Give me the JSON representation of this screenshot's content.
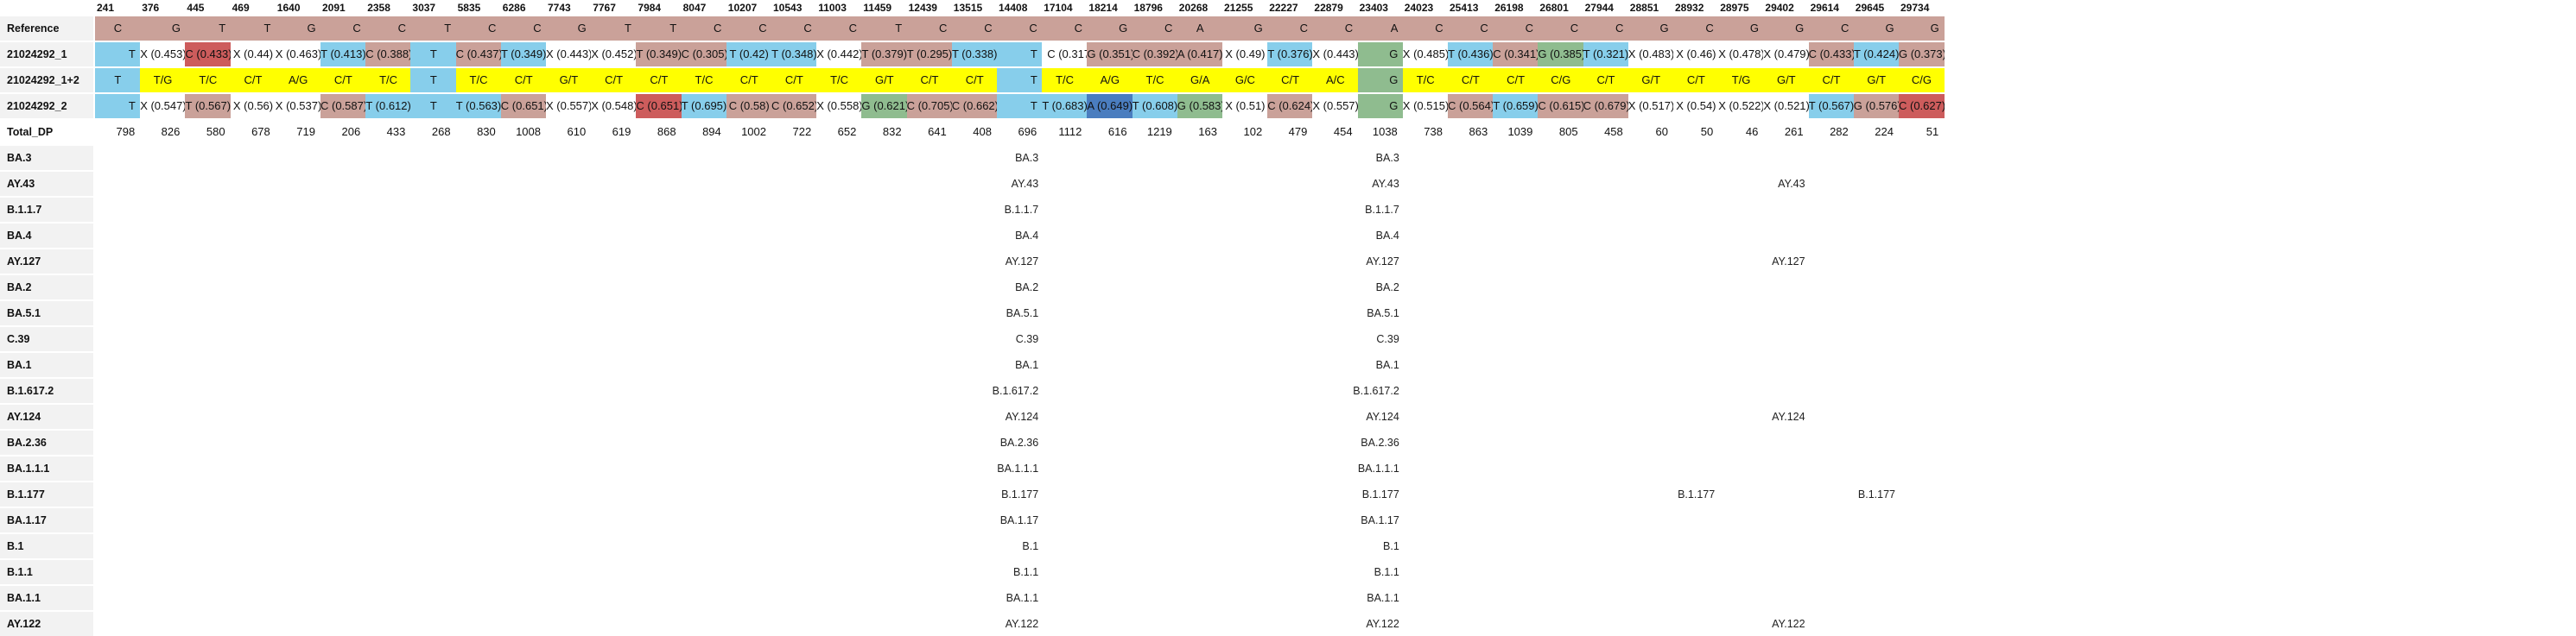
{
  "colors": {
    "C": "#caa199",
    "T": "#87ceeb",
    "G": "#8fbc8f",
    "A": "#caa199",
    "Y": "#ffff00",
    "R": "#cd5c5c",
    "B": "#4a7dbf",
    "W": "#ffffff"
  },
  "columns": [
    "241",
    "376",
    "445",
    "469",
    "1640",
    "2091",
    "2358",
    "3037",
    "5835",
    "6286",
    "7743",
    "7767",
    "7984",
    "8047",
    "10207",
    "10543",
    "11003",
    "11459",
    "12439",
    "13515",
    "14408",
    "17104",
    "18214",
    "18796",
    "20268",
    "21255",
    "22227",
    "22879",
    "23403",
    "24023",
    "25413",
    "26198",
    "26801",
    "27944",
    "28851",
    "28932",
    "28975",
    "29402",
    "29614",
    "29645",
    "29734"
  ],
  "rows": [
    {
      "label": "Reference",
      "cells": [
        [
          "C",
          "C",
          "c"
        ],
        [
          "G",
          "C",
          "r"
        ],
        [
          "T",
          "C",
          "r"
        ],
        [
          "T",
          "C",
          "r"
        ],
        [
          "G",
          "C",
          "r"
        ],
        [
          "C",
          "C",
          "r"
        ],
        [
          "C",
          "C",
          "r"
        ],
        [
          "T",
          "C",
          "r"
        ],
        [
          "C",
          "C",
          "r"
        ],
        [
          "C",
          "C",
          "r"
        ],
        [
          "G",
          "C",
          "r"
        ],
        [
          "T",
          "C",
          "r"
        ],
        [
          "T",
          "C",
          "r"
        ],
        [
          "C",
          "C",
          "r"
        ],
        [
          "C",
          "C",
          "r"
        ],
        [
          "C",
          "C",
          "r"
        ],
        [
          "C",
          "C",
          "r"
        ],
        [
          "T",
          "C",
          "r"
        ],
        [
          "C",
          "C",
          "r"
        ],
        [
          "C",
          "C",
          "r"
        ],
        [
          "C",
          "C",
          "r"
        ],
        [
          "C",
          "C",
          "r"
        ],
        [
          "G",
          "C",
          "r"
        ],
        [
          "C",
          "C",
          "r"
        ],
        [
          "A",
          "A",
          "c"
        ],
        [
          "G",
          "C",
          "r"
        ],
        [
          "C",
          "C",
          "r"
        ],
        [
          "C",
          "C",
          "r"
        ],
        [
          "A",
          "C",
          "r"
        ],
        [
          "C",
          "C",
          "r"
        ],
        [
          "C",
          "C",
          "r"
        ],
        [
          "C",
          "C",
          "r"
        ],
        [
          "C",
          "C",
          "r"
        ],
        [
          "C",
          "C",
          "r"
        ],
        [
          "G",
          "C",
          "r"
        ],
        [
          "C",
          "C",
          "r"
        ],
        [
          "G",
          "C",
          "r"
        ],
        [
          "G",
          "C",
          "r"
        ],
        [
          "C",
          "C",
          "r"
        ],
        [
          "G",
          "C",
          "r"
        ],
        [
          "G",
          "C",
          "r"
        ]
      ]
    },
    {
      "label": "21024292_1",
      "cells": [
        [
          "T",
          "T",
          "r"
        ],
        [
          "X (0.453)",
          "W",
          "c"
        ],
        [
          "C (0.433)",
          "R",
          "c"
        ],
        [
          "X (0.44)",
          "W",
          "c"
        ],
        [
          "X (0.463)",
          "W",
          "c"
        ],
        [
          "T (0.413)",
          "T",
          "c"
        ],
        [
          "C (0.388)",
          "C",
          "c"
        ],
        [
          "T",
          "T",
          "c"
        ],
        [
          "C (0.437)",
          "C",
          "c"
        ],
        [
          "T (0.349)",
          "T",
          "c"
        ],
        [
          "X (0.443)",
          "W",
          "c"
        ],
        [
          "X (0.452)",
          "W",
          "c"
        ],
        [
          "T (0.349)",
          "C",
          "c"
        ],
        [
          "C (0.305)",
          "C",
          "c"
        ],
        [
          "T (0.42)",
          "T",
          "c"
        ],
        [
          "T (0.348)",
          "T",
          "c"
        ],
        [
          "X (0.442)",
          "W",
          "c"
        ],
        [
          "T (0.379)",
          "C",
          "c"
        ],
        [
          "T (0.295)",
          "C",
          "c"
        ],
        [
          "T (0.338)",
          "T",
          "c"
        ],
        [
          "T",
          "T",
          "r"
        ],
        [
          "C (0.317)",
          "W",
          "l"
        ],
        [
          "G (0.351)",
          "C",
          "c"
        ],
        [
          "C (0.392)",
          "C",
          "c"
        ],
        [
          "A (0.417)",
          "C",
          "c"
        ],
        [
          "X (0.49)",
          "W",
          "c"
        ],
        [
          "T (0.376)",
          "T",
          "c"
        ],
        [
          "X (0.443)",
          "W",
          "c"
        ],
        [
          "G",
          "G",
          "r"
        ],
        [
          "X (0.485)",
          "W",
          "c"
        ],
        [
          "T (0.436)",
          "T",
          "c"
        ],
        [
          "C (0.341)",
          "C",
          "c"
        ],
        [
          "G (0.385)",
          "G",
          "c"
        ],
        [
          "T (0.321)",
          "T",
          "c"
        ],
        [
          "X (0.483)",
          "W",
          "c"
        ],
        [
          "X (0.46)",
          "W",
          "c"
        ],
        [
          "X (0.478)",
          "W",
          "c"
        ],
        [
          "X (0.479)",
          "W",
          "c"
        ],
        [
          "C (0.433)",
          "C",
          "c"
        ],
        [
          "T (0.424)",
          "T",
          "c"
        ],
        [
          "G (0.373)",
          "C",
          "c"
        ]
      ]
    },
    {
      "label": "21024292_1+2",
      "cells": [
        [
          "T",
          "T",
          "c"
        ],
        [
          "T/G",
          "Y",
          "c"
        ],
        [
          "T/C",
          "Y",
          "c"
        ],
        [
          "C/T",
          "Y",
          "c"
        ],
        [
          "A/G",
          "Y",
          "c"
        ],
        [
          "C/T",
          "Y",
          "c"
        ],
        [
          "T/C",
          "Y",
          "c"
        ],
        [
          "T",
          "T",
          "c"
        ],
        [
          "T/C",
          "Y",
          "c"
        ],
        [
          "C/T",
          "Y",
          "c"
        ],
        [
          "G/T",
          "Y",
          "c"
        ],
        [
          "C/T",
          "Y",
          "c"
        ],
        [
          "C/T",
          "Y",
          "c"
        ],
        [
          "T/C",
          "Y",
          "c"
        ],
        [
          "C/T",
          "Y",
          "c"
        ],
        [
          "C/T",
          "Y",
          "c"
        ],
        [
          "T/C",
          "Y",
          "c"
        ],
        [
          "G/T",
          "Y",
          "c"
        ],
        [
          "C/T",
          "Y",
          "c"
        ],
        [
          "C/T",
          "Y",
          "c"
        ],
        [
          "T",
          "T",
          "r"
        ],
        [
          "T/C",
          "Y",
          "c"
        ],
        [
          "A/G",
          "Y",
          "c"
        ],
        [
          "T/C",
          "Y",
          "c"
        ],
        [
          "G/A",
          "Y",
          "c"
        ],
        [
          "G/C",
          "Y",
          "c"
        ],
        [
          "C/T",
          "Y",
          "c"
        ],
        [
          "A/C",
          "Y",
          "c"
        ],
        [
          "G",
          "G",
          "r"
        ],
        [
          "T/C",
          "Y",
          "c"
        ],
        [
          "C/T",
          "Y",
          "c"
        ],
        [
          "C/T",
          "Y",
          "c"
        ],
        [
          "C/G",
          "Y",
          "c"
        ],
        [
          "C/T",
          "Y",
          "c"
        ],
        [
          "G/T",
          "Y",
          "c"
        ],
        [
          "C/T",
          "Y",
          "c"
        ],
        [
          "T/G",
          "Y",
          "c"
        ],
        [
          "G/T",
          "Y",
          "c"
        ],
        [
          "C/T",
          "Y",
          "c"
        ],
        [
          "G/T",
          "Y",
          "c"
        ],
        [
          "C/G",
          "Y",
          "c"
        ]
      ]
    },
    {
      "label": "21024292_2",
      "cells": [
        [
          "T",
          "T",
          "r"
        ],
        [
          "X (0.547)",
          "W",
          "c"
        ],
        [
          "T (0.567)",
          "C",
          "c"
        ],
        [
          "X (0.56)",
          "W",
          "c"
        ],
        [
          "X (0.537)",
          "W",
          "c"
        ],
        [
          "C (0.587)",
          "C",
          "c"
        ],
        [
          "T (0.612)",
          "T",
          "c"
        ],
        [
          "T",
          "T",
          "c"
        ],
        [
          "T (0.563)",
          "T",
          "c"
        ],
        [
          "C (0.651)",
          "C",
          "c"
        ],
        [
          "X (0.557)",
          "W",
          "c"
        ],
        [
          "X (0.548)",
          "W",
          "c"
        ],
        [
          "C (0.651)",
          "R",
          "c"
        ],
        [
          "T (0.695)",
          "T",
          "c"
        ],
        [
          "C (0.58)",
          "C",
          "c"
        ],
        [
          "C (0.652)",
          "C",
          "c"
        ],
        [
          "X (0.558)",
          "W",
          "c"
        ],
        [
          "G (0.621)",
          "G",
          "c"
        ],
        [
          "C (0.705)",
          "C",
          "c"
        ],
        [
          "C (0.662)",
          "C",
          "c"
        ],
        [
          "T",
          "T",
          "r"
        ],
        [
          "T (0.683)",
          "T",
          "c"
        ],
        [
          "A (0.649)",
          "B",
          "c"
        ],
        [
          "T (0.608)",
          "T",
          "c"
        ],
        [
          "G (0.583)",
          "G",
          "c"
        ],
        [
          "X (0.51)",
          "W",
          "c"
        ],
        [
          "C (0.624)",
          "C",
          "c"
        ],
        [
          "X (0.557)",
          "W",
          "c"
        ],
        [
          "G",
          "G",
          "r"
        ],
        [
          "X (0.515)",
          "W",
          "c"
        ],
        [
          "C (0.564)",
          "C",
          "c"
        ],
        [
          "T (0.659)",
          "T",
          "c"
        ],
        [
          "C (0.615)",
          "C",
          "c"
        ],
        [
          "C (0.679)",
          "C",
          "c"
        ],
        [
          "X (0.517)",
          "W",
          "c"
        ],
        [
          "X (0.54)",
          "W",
          "c"
        ],
        [
          "X (0.522)",
          "W",
          "c"
        ],
        [
          "X (0.521)",
          "W",
          "c"
        ],
        [
          "T (0.567)",
          "T",
          "c"
        ],
        [
          "G (0.576)",
          "C",
          "c"
        ],
        [
          "C (0.627)",
          "R",
          "c"
        ]
      ]
    }
  ],
  "total_dp": {
    "label": "Total_DP",
    "values": [
      "798",
      "826",
      "580",
      "678",
      "719",
      "206",
      "433",
      "268",
      "830",
      "1008",
      "610",
      "619",
      "868",
      "894",
      "1002",
      "722",
      "652",
      "832",
      "641",
      "408",
      "696",
      "1112",
      "616",
      "1219",
      "163",
      "102",
      "479",
      "454",
      "1038",
      "738",
      "863",
      "1039",
      "805",
      "458",
      "60",
      "50",
      "46",
      "261",
      "282",
      "224",
      "51"
    ]
  },
  "lineages": [
    {
      "label": "BA.3",
      "marks": [
        [
          20,
          "BA.3"
        ],
        [
          28,
          "BA.3"
        ]
      ]
    },
    {
      "label": "AY.43",
      "marks": [
        [
          20,
          "AY.43"
        ],
        [
          28,
          "AY.43"
        ],
        [
          37,
          "AY.43"
        ]
      ]
    },
    {
      "label": "B.1.1.7",
      "marks": [
        [
          20,
          "B.1.1.7"
        ],
        [
          28,
          "B.1.1.7"
        ]
      ]
    },
    {
      "label": "BA.4",
      "marks": [
        [
          20,
          "BA.4"
        ],
        [
          28,
          "BA.4"
        ]
      ]
    },
    {
      "label": "AY.127",
      "marks": [
        [
          20,
          "AY.127"
        ],
        [
          28,
          "AY.127"
        ],
        [
          37,
          "AY.127"
        ]
      ]
    },
    {
      "label": "BA.2",
      "marks": [
        [
          20,
          "BA.2"
        ],
        [
          28,
          "BA.2"
        ]
      ]
    },
    {
      "label": "BA.5.1",
      "marks": [
        [
          20,
          "BA.5.1"
        ],
        [
          28,
          "BA.5.1"
        ]
      ]
    },
    {
      "label": "C.39",
      "marks": [
        [
          20,
          "C.39"
        ],
        [
          28,
          "C.39"
        ]
      ]
    },
    {
      "label": "BA.1",
      "marks": [
        [
          20,
          "BA.1"
        ],
        [
          28,
          "BA.1"
        ]
      ]
    },
    {
      "label": "B.1.617.2",
      "marks": [
        [
          20,
          "B.1.617.2"
        ],
        [
          28,
          "B.1.617.2"
        ]
      ]
    },
    {
      "label": "AY.124",
      "marks": [
        [
          20,
          "AY.124"
        ],
        [
          28,
          "AY.124"
        ],
        [
          37,
          "AY.124"
        ]
      ]
    },
    {
      "label": "BA.2.36",
      "marks": [
        [
          20,
          "BA.2.36"
        ],
        [
          28,
          "BA.2.36"
        ]
      ]
    },
    {
      "label": "BA.1.1.1",
      "marks": [
        [
          20,
          "BA.1.1.1"
        ],
        [
          28,
          "BA.1.1.1"
        ]
      ]
    },
    {
      "label": "B.1.177",
      "marks": [
        [
          20,
          "B.1.177"
        ],
        [
          28,
          "B.1.177"
        ],
        [
          35,
          "B.1.177"
        ],
        [
          39,
          "B.1.177"
        ]
      ]
    },
    {
      "label": "BA.1.17",
      "marks": [
        [
          20,
          "BA.1.17"
        ],
        [
          28,
          "BA.1.17"
        ]
      ]
    },
    {
      "label": "B.1",
      "marks": [
        [
          20,
          "B.1"
        ],
        [
          28,
          "B.1"
        ]
      ]
    },
    {
      "label": "B.1.1",
      "marks": [
        [
          20,
          "B.1.1"
        ],
        [
          28,
          "B.1.1"
        ]
      ]
    },
    {
      "label": "BA.1.1",
      "marks": [
        [
          20,
          "BA.1.1"
        ],
        [
          28,
          "BA.1.1"
        ]
      ]
    },
    {
      "label": "AY.122",
      "marks": [
        [
          20,
          "AY.122"
        ],
        [
          28,
          "AY.122"
        ],
        [
          37,
          "AY.122"
        ]
      ]
    }
  ]
}
